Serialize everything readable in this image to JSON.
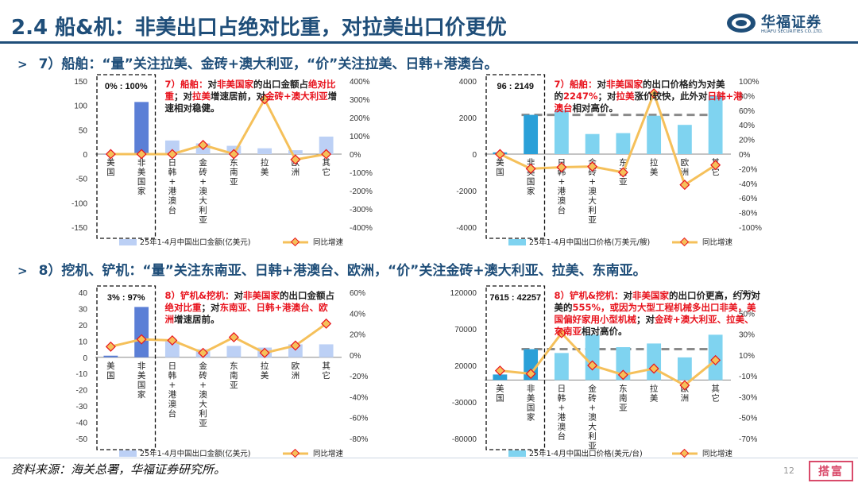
{
  "page": {
    "title": "2.4 船&机：非美出口占绝对比重，对拉美出口价更优",
    "section1": "7）船舶：“量”关注拉美、金砖+澳大利亚，“价”关注拉美、日韩+港澳台。",
    "section2": "8）挖机、铲机：“量”关注东南亚、日韩+港澳台、欧洲，“价”关注金砖+澳大利亚、拉美、东南亚。",
    "source": "资料来源：海关总署，华福证券研究所。",
    "page_number": "12",
    "logo_text": "华福证券",
    "logo_subtext": "HUAFU SECURITIES CO.,LTD.",
    "stamp_text": "搭富",
    "colors": {
      "title": "#1f4e79",
      "highlight": "#e8141e",
      "line": "#f2b84b",
      "marker_edge": "#e8141e"
    }
  },
  "chart_data": [
    {
      "id": "c1",
      "type": "bar+line",
      "categories": [
        "美国",
        "非美国家",
        "日韩+港澳台",
        "金砖+澳大利亚",
        "东南亚",
        "拉美",
        "欧洲",
        "其它"
      ],
      "bar_series": {
        "name": "25年1-4月中国出口金额(亿美元)",
        "values": [
          0,
          107,
          28,
          22,
          17,
          12,
          8,
          36
        ]
      },
      "line_series": {
        "name": "同比增速",
        "values": [
          0,
          0,
          0,
          50,
          0,
          300,
          -30,
          0
        ]
      },
      "ylim": [
        -150,
        150
      ],
      "yticks": [
        -150,
        -100,
        -50,
        0,
        50,
        100,
        150
      ],
      "y2lim": [
        -400,
        400
      ],
      "y2ticks": [
        -400,
        -300,
        -200,
        -100,
        0,
        100,
        200,
        300,
        400
      ],
      "y2suffix": "%",
      "ratio_text": "0%   :   100%",
      "note": [
        [
          {
            "t": "7）船舶：",
            "c": "#e8141e"
          },
          {
            "t": "对"
          },
          {
            "t": "非美国家",
            "c": "#e8141e"
          },
          {
            "t": "的出口金额占"
          },
          {
            "t": "绝对比",
            "c": "#e8141e"
          }
        ],
        [
          {
            "t": "重",
            "c": "#e8141e"
          },
          {
            "t": "；对"
          },
          {
            "t": "拉美",
            "c": "#e8141e"
          },
          {
            "t": "增速居前，对"
          },
          {
            "t": "金砖+澳大利亚",
            "c": "#e8141e"
          },
          {
            "t": "增"
          }
        ],
        [
          {
            "t": "速相对稳健。"
          }
        ]
      ]
    },
    {
      "id": "c2",
      "type": "bar+line",
      "categories": [
        "美国",
        "非美国家",
        "日韩+港澳台",
        "金砖+澳大利亚",
        "东南亚",
        "拉美",
        "欧洲",
        "其它"
      ],
      "bar_series": {
        "name": "25年1-4月中国出口价格(万美元/艘)",
        "values": [
          96,
          2149,
          2400,
          1100,
          1150,
          2100,
          1600,
          3200
        ]
      },
      "line_series": {
        "name": "同比增速",
        "values": [
          0,
          -20,
          -18,
          -17,
          -25,
          83,
          -42,
          -15
        ]
      },
      "avg_line": 2149,
      "ylim": [
        -4000,
        4000
      ],
      "yticks": [
        -4000,
        -2000,
        0,
        2000,
        4000
      ],
      "y2lim": [
        -100,
        100
      ],
      "y2ticks": [
        -100,
        -80,
        -60,
        -40,
        -20,
        0,
        20,
        40,
        60,
        80,
        100
      ],
      "y2suffix": "%",
      "ratio_text": "96   :   2149",
      "note": [
        [
          {
            "t": "7）船舶：",
            "c": "#e8141e"
          },
          {
            "t": "对"
          },
          {
            "t": "非美国家",
            "c": "#e8141e"
          },
          {
            "t": "的出口价格约为对美"
          }
        ],
        [
          {
            "t": "的"
          },
          {
            "t": "2247%",
            "c": "#e8141e"
          },
          {
            "t": "；对"
          },
          {
            "t": "拉美",
            "c": "#e8141e"
          },
          {
            "t": "涨价较快，此外对"
          },
          {
            "t": "日韩+港",
            "c": "#e8141e"
          }
        ],
        [
          {
            "t": "澳台",
            "c": "#e8141e"
          },
          {
            "t": "相对高价。"
          }
        ]
      ]
    },
    {
      "id": "c3",
      "type": "bar+line",
      "categories": [
        "美国",
        "非美国家",
        "日韩+港澳台",
        "金砖+澳大利亚",
        "东南亚",
        "拉美",
        "欧洲",
        "其它"
      ],
      "bar_series": {
        "name": "25年1-4月中国出口金额(亿美元)",
        "values": [
          1,
          31,
          10,
          5,
          7,
          6,
          8,
          8
        ]
      },
      "line_series": {
        "name": "同比增速",
        "values": [
          8,
          15,
          14,
          2,
          17,
          2,
          9,
          30
        ]
      },
      "ylim": [
        -50,
        40
      ],
      "yticks": [
        -50,
        -40,
        -30,
        -20,
        -10,
        0,
        10,
        20,
        30,
        40
      ],
      "y2lim": [
        -80,
        60
      ],
      "y2ticks": [
        -80,
        -60,
        -40,
        -20,
        0,
        20,
        40,
        60
      ],
      "y2suffix": "%",
      "ratio_text": "3%   :   97%",
      "note": [
        [
          {
            "t": "8）铲机&挖机：",
            "c": "#e8141e"
          },
          {
            "t": "对"
          },
          {
            "t": "非美国家",
            "c": "#e8141e"
          },
          {
            "t": "的出口金额占"
          }
        ],
        [
          {
            "t": "绝对比重",
            "c": "#e8141e"
          },
          {
            "t": "；对"
          },
          {
            "t": "东南亚、日韩+港澳台、欧",
            "c": "#e8141e"
          }
        ],
        [
          {
            "t": "洲",
            "c": "#e8141e"
          },
          {
            "t": "增速居前。"
          }
        ]
      ]
    },
    {
      "id": "c4",
      "type": "bar+line",
      "categories": [
        "美国",
        "非美国家",
        "日韩+港澳台",
        "金砖+澳大利亚",
        "东南亚",
        "拉美",
        "欧洲",
        "其它"
      ],
      "bar_series": {
        "name": "25年1-4月中国出口价格(美元/台)",
        "values": [
          7615,
          42257,
          37000,
          62000,
          45000,
          50000,
          31000,
          62000
        ]
      },
      "line_series": {
        "name": "同比增速",
        "values": [
          -5,
          -8,
          31,
          0,
          -9,
          -3,
          -19,
          5
        ]
      },
      "avg_line": 42257,
      "ylim": [
        -80000,
        120000
      ],
      "yticks": [
        -80000,
        -30000,
        20000,
        70000,
        120000
      ],
      "y2lim": [
        -70,
        70
      ],
      "y2ticks": [
        -70,
        -50,
        -30,
        -10,
        10,
        30,
        50,
        70
      ],
      "y2suffix": "%",
      "ratio_text": "7615 : 42257",
      "note": [
        [
          {
            "t": "8）铲机&挖机：",
            "c": "#e8141e"
          },
          {
            "t": "对"
          },
          {
            "t": "非美国家",
            "c": "#e8141e"
          },
          {
            "t": "的出口价更高，约为对"
          }
        ],
        [
          {
            "t": "美的"
          },
          {
            "t": "555%，或因为大型工程机械多出口非美，美",
            "c": "#e8141e"
          }
        ],
        [
          {
            "t": "国偏好家用小型机械",
            "c": "#e8141e"
          },
          {
            "t": "；对"
          },
          {
            "t": "金砖+澳大利亚、拉美、",
            "c": "#e8141e"
          }
        ],
        [
          {
            "t": "东南亚",
            "c": "#e8141e"
          },
          {
            "t": "相对高价。"
          }
        ]
      ]
    }
  ]
}
